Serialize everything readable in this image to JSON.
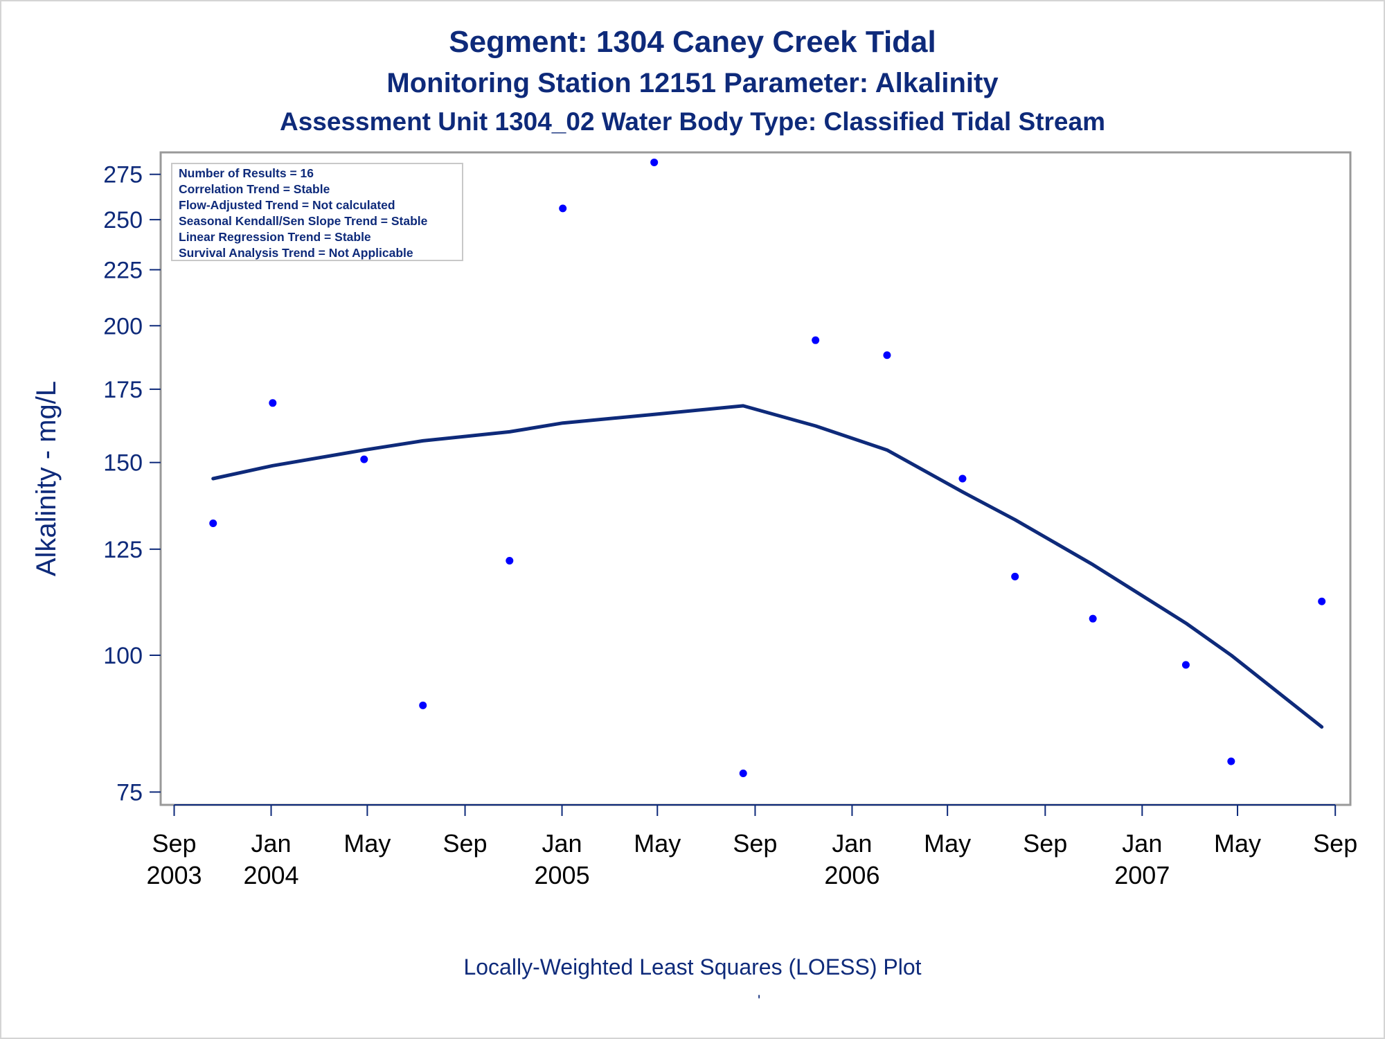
{
  "titles": {
    "line1": "Segment: 1304  Caney Creek Tidal",
    "line2": "Monitoring Station 12151 Parameter: Alkalinity",
    "line3": "Assessment Unit 1304_02   Water Body Type: Classified Tidal Stream"
  },
  "footnote": "Locally-Weighted Least Squares (LOESS) Plot",
  "footnote_mark": "'",
  "colors": {
    "text": "#0e2a7a",
    "points": "#0000ff",
    "loess": "#0e2a7a",
    "frame": "#999999"
  },
  "chart_data": {
    "type": "scatter",
    "ylabel": "Alkalinity - mg/L",
    "xlabel": "",
    "y_scale": "log",
    "ylim": [
      73,
      288
    ],
    "xlim": [
      "2003-08-15",
      "2007-09-20"
    ],
    "yticks": [
      75,
      100,
      125,
      150,
      175,
      200,
      225,
      250,
      275
    ],
    "xticks": [
      {
        "date": "2003-09-01",
        "month": "Sep",
        "year": "2003"
      },
      {
        "date": "2004-01-01",
        "month": "Jan",
        "year": "2004"
      },
      {
        "date": "2004-05-01",
        "month": "May",
        "year": ""
      },
      {
        "date": "2004-09-01",
        "month": "Sep",
        "year": ""
      },
      {
        "date": "2005-01-01",
        "month": "Jan",
        "year": "2005"
      },
      {
        "date": "2005-05-01",
        "month": "May",
        "year": ""
      },
      {
        "date": "2005-09-01",
        "month": "Sep",
        "year": ""
      },
      {
        "date": "2006-01-01",
        "month": "Jan",
        "year": "2006"
      },
      {
        "date": "2006-05-01",
        "month": "May",
        "year": ""
      },
      {
        "date": "2006-09-01",
        "month": "Sep",
        "year": ""
      },
      {
        "date": "2007-01-01",
        "month": "Jan",
        "year": "2007"
      },
      {
        "date": "2007-05-01",
        "month": "May",
        "year": ""
      },
      {
        "date": "2007-09-01",
        "month": "Sep",
        "year": ""
      }
    ],
    "legend_box": {
      "placement": "top-left",
      "lines": [
        "Number of Results = 16",
        "Correlation Trend = Stable",
        "Flow-Adjusted Trend = Not calculated",
        "Seasonal Kendall/Sen Slope Trend = Stable",
        "Linear Regression Trend = Stable",
        "Survival Analysis Trend = Not Applicable"
      ]
    },
    "series": [
      {
        "type": "scatter",
        "points": [
          {
            "x": "2003-10-20",
            "y": 132
          },
          {
            "x": "2004-01-03",
            "y": 170
          },
          {
            "x": "2004-04-27",
            "y": 151
          },
          {
            "x": "2004-07-10",
            "y": 90
          },
          {
            "x": "2004-10-27",
            "y": 122
          },
          {
            "x": "2005-01-02",
            "y": 256
          },
          {
            "x": "2005-04-27",
            "y": 282
          },
          {
            "x": "2005-08-17",
            "y": 78
          },
          {
            "x": "2005-11-16",
            "y": 194
          },
          {
            "x": "2006-02-14",
            "y": 188
          },
          {
            "x": "2006-05-20",
            "y": 145
          },
          {
            "x": "2006-07-25",
            "y": 118
          },
          {
            "x": "2006-10-31",
            "y": 108
          },
          {
            "x": "2007-02-25",
            "y": 98
          },
          {
            "x": "2007-04-23",
            "y": 80
          },
          {
            "x": "2007-08-15",
            "y": 112
          }
        ]
      },
      {
        "type": "line",
        "points": [
          {
            "x": "2003-10-20",
            "y": 145
          },
          {
            "x": "2004-01-03",
            "y": 149
          },
          {
            "x": "2004-04-27",
            "y": 154
          },
          {
            "x": "2004-07-10",
            "y": 157
          },
          {
            "x": "2004-10-27",
            "y": 160
          },
          {
            "x": "2005-01-02",
            "y": 163
          },
          {
            "x": "2005-04-27",
            "y": 166
          },
          {
            "x": "2005-08-17",
            "y": 169
          },
          {
            "x": "2005-11-16",
            "y": 162
          },
          {
            "x": "2006-02-14",
            "y": 154
          },
          {
            "x": "2006-05-20",
            "y": 141
          },
          {
            "x": "2006-07-25",
            "y": 133
          },
          {
            "x": "2006-10-31",
            "y": 121
          },
          {
            "x": "2007-02-25",
            "y": 107
          },
          {
            "x": "2007-04-23",
            "y": 100
          },
          {
            "x": "2007-08-15",
            "y": 86
          }
        ]
      }
    ]
  }
}
